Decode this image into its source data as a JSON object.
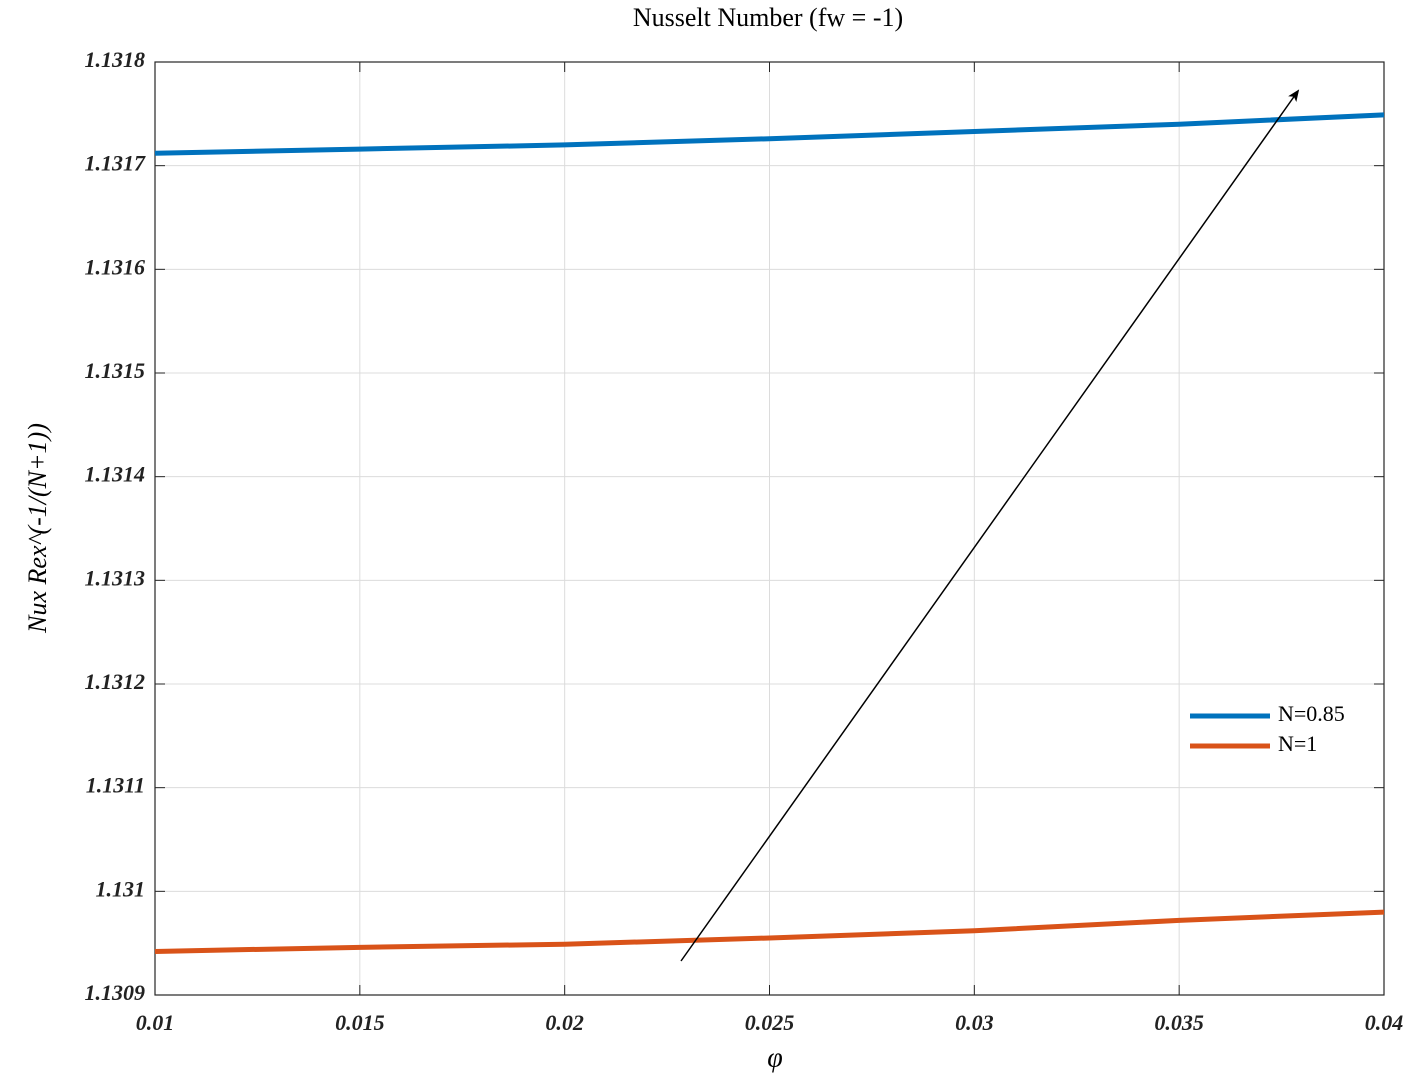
{
  "chart_data": {
    "type": "line",
    "title": "Nusselt Number (fw = -1)",
    "x_label": "φ",
    "y_label": "Nux Rex^(-1/(N+1))",
    "x": [
      0.01,
      0.015,
      0.02,
      0.025,
      0.03,
      0.035,
      0.04
    ],
    "series": [
      {
        "name": "N=0.85",
        "color": "#0072bd",
        "values": [
          1.131712,
          1.131716,
          1.13172,
          1.131726,
          1.131733,
          1.13174,
          1.131749
        ]
      },
      {
        "name": "N=1",
        "color": "#d95319",
        "values": [
          1.130942,
          1.130946,
          1.130949,
          1.130955,
          1.130962,
          1.130972,
          1.13098
        ]
      }
    ],
    "xlim": [
      0.01,
      0.04
    ],
    "xticks": [
      0.01,
      0.015,
      0.02,
      0.025,
      0.03,
      0.035,
      0.04
    ],
    "ylim": [
      1.1309,
      1.1318
    ],
    "yticks": [
      1.1309,
      1.131,
      1.1311,
      1.1312,
      1.1313,
      1.1314,
      1.1315,
      1.1316,
      1.1317,
      1.1318
    ],
    "grid": true,
    "legend": "right"
  }
}
